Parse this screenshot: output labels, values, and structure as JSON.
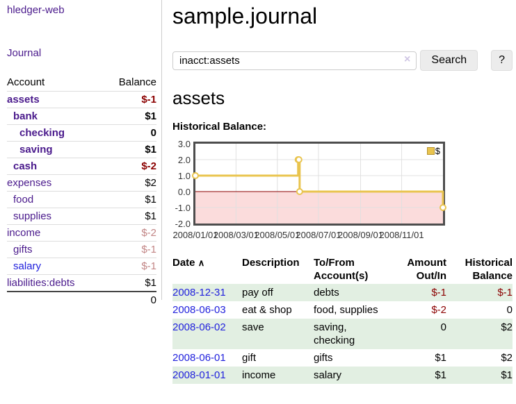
{
  "app": {
    "title": "hledger-web"
  },
  "sidebar": {
    "nav_journal": "Journal",
    "accounts": {
      "col_account": "Account",
      "col_balance": "Balance",
      "rows": [
        {
          "name": "assets",
          "depth": 0,
          "balance": "$-1",
          "bold": true,
          "neg": "strong"
        },
        {
          "name": "bank",
          "depth": 1,
          "balance": "$1",
          "bold": true
        },
        {
          "name": "checking",
          "depth": 2,
          "balance": "0",
          "bold": true
        },
        {
          "name": "saving",
          "depth": 2,
          "balance": "$1",
          "bold": true
        },
        {
          "name": "cash",
          "depth": 1,
          "balance": "$-2",
          "bold": true,
          "neg": "strong"
        },
        {
          "name": "expenses",
          "depth": 0,
          "balance": "$2"
        },
        {
          "name": "food",
          "depth": 1,
          "balance": "$1"
        },
        {
          "name": "supplies",
          "depth": 1,
          "balance": "$1"
        },
        {
          "name": "income",
          "depth": 0,
          "balance": "$-2",
          "neg": "muted"
        },
        {
          "name": "gifts",
          "depth": 1,
          "balance": "$-1",
          "neg": "muted"
        },
        {
          "name": "salary",
          "depth": 1,
          "balance": "$-1",
          "neg": "muted",
          "visited": true
        },
        {
          "name": "liabilities:debts",
          "depth": 0,
          "balance": "$1"
        }
      ],
      "total": "0"
    }
  },
  "main": {
    "title": "sample.journal",
    "search": {
      "value": "inacct:assets",
      "clear_icon": "×",
      "button_label": "Search",
      "help_label": "?"
    },
    "account_heading": "assets"
  },
  "chart_data": {
    "type": "line",
    "title": "Historical Balance:",
    "ylim": [
      -2,
      3
    ],
    "yticks": [
      3.0,
      2.0,
      1.0,
      0.0,
      -1.0,
      -2.0
    ],
    "ytick_labels": [
      "3.0",
      "2.0",
      "1.0",
      "0.0",
      "-1.0",
      "-2.0"
    ],
    "xticks": [
      {
        "label": "2008/01/01",
        "f": 0.0
      },
      {
        "label": "2008/03/01",
        "f": 0.164
      },
      {
        "label": "2008/05/01",
        "f": 0.331
      },
      {
        "label": "2008/07/01",
        "f": 0.497
      },
      {
        "label": "2008/09/01",
        "f": 0.667
      },
      {
        "label": "2008/11/01",
        "f": 0.833
      }
    ],
    "series": [
      {
        "name": "$",
        "color": "#e9c44e",
        "step": true,
        "points": [
          {
            "date": "2008-01-01",
            "f": 0.0,
            "value": 1
          },
          {
            "date": "2008-06-01",
            "f": 0.415,
            "value": 2
          },
          {
            "date": "2008-06-02",
            "f": 0.418,
            "value": 2
          },
          {
            "date": "2008-06-03",
            "f": 0.421,
            "value": 0
          },
          {
            "date": "2008-12-31",
            "f": 1.0,
            "value": -1
          }
        ]
      }
    ],
    "legend": {
      "label": "$",
      "position": "top-right"
    },
    "negative_region_color": "#fbdcdc",
    "zero_line_color": "#8b0000",
    "grid_color": "#e0e0e0",
    "grid": true
  },
  "register": {
    "headers": {
      "date": "Date",
      "sort_icon": "∧",
      "description": "Description",
      "accounts": "To/From Account(s)",
      "amount": "Amount Out/In",
      "balance": "Historical Balance"
    },
    "rows": [
      {
        "date": "2008-12-31",
        "description": "pay off",
        "accounts": "debts",
        "amount": "$-1",
        "balance": "$-1",
        "amount_negative": true,
        "balance_negative": true
      },
      {
        "date": "2008-06-03",
        "description": "eat & shop",
        "accounts": "food, supplies",
        "amount": "$-2",
        "balance": "0",
        "amount_negative": true,
        "balance_negative": false
      },
      {
        "date": "2008-06-02",
        "description": "save",
        "accounts": "saving, checking",
        "amount": "0",
        "balance": "$2",
        "amount_negative": false,
        "balance_negative": false
      },
      {
        "date": "2008-06-01",
        "description": "gift",
        "accounts": "gifts",
        "amount": "$1",
        "balance": "$2",
        "amount_negative": false,
        "balance_negative": false
      },
      {
        "date": "2008-01-01",
        "description": "income",
        "accounts": "salary",
        "amount": "$1",
        "balance": "$1",
        "amount_negative": false,
        "balance_negative": false
      }
    ]
  },
  "colors": {
    "link_purple": "#4a1a8c",
    "link_blue": "#2222dd",
    "negative_strong": "#8b0000",
    "negative_muted": "#c28585",
    "row_stripe_green": "#e2efe2",
    "chart_line_gold": "#e9c44e",
    "chart_negative_pink": "#fbdcdc",
    "chart_zero_line": "#8b0000",
    "chart_border_gray": "#4d4d4d"
  }
}
